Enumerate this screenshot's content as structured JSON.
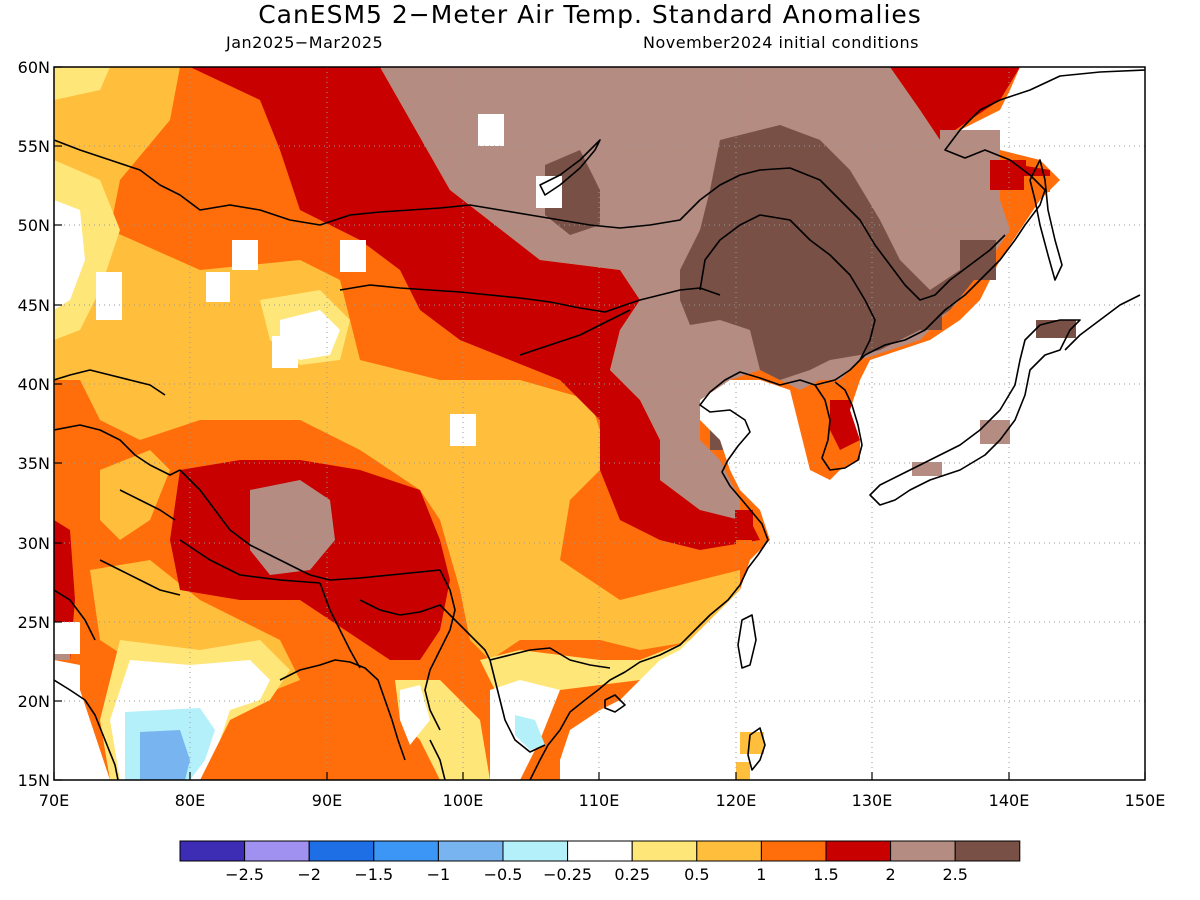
{
  "title": "CanESM5 2−Meter Air Temp. Standard Anomalies",
  "subtitle_left": "Jan2025−Mar2025",
  "subtitle_right": "November2024 initial conditions",
  "map": {
    "lon_range": [
      70,
      150
    ],
    "lat_range": [
      15,
      60
    ],
    "lat_labels": [
      "15N",
      "20N",
      "25N",
      "30N",
      "35N",
      "40N",
      "45N",
      "50N",
      "55N",
      "60N"
    ],
    "lon_labels": [
      "70E",
      "80E",
      "90E",
      "100E",
      "110E",
      "120E",
      "130E",
      "140E",
      "150E"
    ]
  },
  "colorbar": {
    "colors": [
      "#3c2db4",
      "#a091f0",
      "#1e6ee6",
      "#3c96f5",
      "#78b4f0",
      "#b4f0fa",
      "#ffffff",
      "#ffe678",
      "#ffbe3c",
      "#ff6e0a",
      "#c80000",
      "#b48c82",
      "#785046"
    ],
    "labels": [
      "−2.5",
      "−2",
      "−1.5",
      "−1",
      "−0.5",
      "−0.25",
      "0.25",
      "0.5",
      "1",
      "1.5",
      "2",
      "2.5"
    ]
  }
}
